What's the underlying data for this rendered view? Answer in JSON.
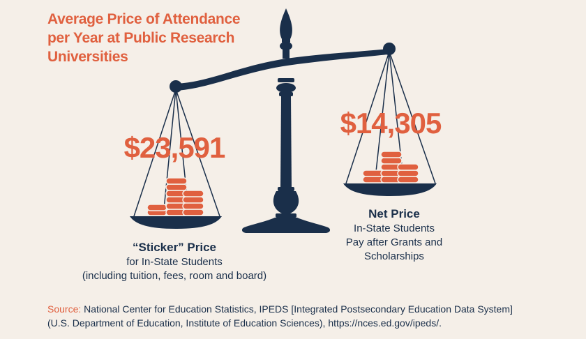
{
  "title": {
    "line1": "Average Price of Attendance",
    "line2": "per Year at Public Research",
    "line3": "Universities"
  },
  "sticker": {
    "amount": "$23,591",
    "heading": "“Sticker” Price",
    "line1": "for In-State Students",
    "line2": "(including tuition, fees, room and board)"
  },
  "net": {
    "amount": "$14,305",
    "heading": "Net Price",
    "line1": "In-State Students",
    "line2": "Pay after Grants and",
    "line3": "Scholarships"
  },
  "source": {
    "label": "Source:",
    "line1": " National Center for Education Statistics, IPEDS [Integrated Postsecondary Education Data System]",
    "line2": "(U.S. Department of Education, Institute of Education Sciences), https://nces.ed.gov/ipeds/."
  },
  "colors": {
    "accent": "#e0603f",
    "navy": "#1a2f4a",
    "background": "#f5efe8"
  }
}
